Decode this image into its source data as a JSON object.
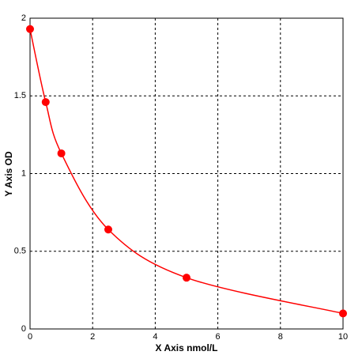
{
  "chart_data": {
    "type": "line",
    "x_label": "X Axis nmol/L",
    "y_label": "Y Axis OD",
    "x": [
      0,
      0.5,
      1,
      2.5,
      5,
      10
    ],
    "values": [
      1.93,
      1.46,
      1.13,
      0.64,
      0.33,
      0.1
    ],
    "color": "#ff0000",
    "xlim": [
      0,
      10
    ],
    "xticks": [
      0,
      2,
      4,
      6,
      8,
      10
    ],
    "ylim": [
      0,
      2
    ],
    "yticks": [
      0,
      0.5,
      1,
      1.5,
      2
    ],
    "grid": true
  }
}
